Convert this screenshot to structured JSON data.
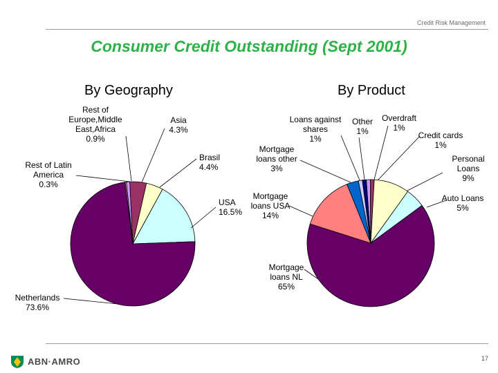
{
  "header": {
    "section_label": "Credit Risk Management"
  },
  "title": "Consumer Credit Outstanding (Sept 2001)",
  "footer": {
    "logo_text": "ABN·AMRO",
    "page_number": "17"
  },
  "colors": {
    "title": "#2fb14a",
    "logo_green": "#0a8a55",
    "logo_yellow": "#f2c40f"
  },
  "chart_data": [
    {
      "type": "pie",
      "title": "By Geography",
      "slices": [
        {
          "label_lines": [
            "Rest of",
            "Europe,Middle",
            "East,Africa",
            "0.9%"
          ],
          "value": 0.9,
          "color": "#cc99ff"
        },
        {
          "label_lines": [
            "Asia",
            "4.3%"
          ],
          "value": 4.3,
          "color": "#993366"
        },
        {
          "label_lines": [
            "Brasil",
            "4.4%"
          ],
          "value": 4.4,
          "color": "#ffffcc"
        },
        {
          "label_lines": [
            "USA",
            "16.5%"
          ],
          "value": 16.5,
          "color": "#ccffff"
        },
        {
          "label_lines": [
            "Netherlands",
            "73.6%"
          ],
          "value": 73.6,
          "color": "#660066"
        },
        {
          "label_lines": [
            "Rest of Latin",
            "America",
            "0.3%"
          ],
          "value": 0.3,
          "color": "#ff99cc"
        }
      ]
    },
    {
      "type": "pie",
      "title": "By Product",
      "slices": [
        {
          "label_lines": [
            "Overdraft",
            "1%"
          ],
          "value": 1,
          "color": "#cc99ff"
        },
        {
          "label_lines": [
            "Credit cards",
            "1%"
          ],
          "value": 1,
          "color": "#993366"
        },
        {
          "label_lines": [
            "Personal",
            "Loans",
            "9%"
          ],
          "value": 9,
          "color": "#ffffcc"
        },
        {
          "label_lines": [
            "Auto Loans",
            "5%"
          ],
          "value": 5,
          "color": "#ccffff"
        },
        {
          "label_lines": [
            "Mortgage",
            "loans NL",
            "65%"
          ],
          "value": 65,
          "color": "#660066"
        },
        {
          "label_lines": [
            "Mortgage",
            "loans USA",
            "14%"
          ],
          "value": 14,
          "color": "#ff8080"
        },
        {
          "label_lines": [
            "Mortgage",
            "loans other",
            "3%"
          ],
          "value": 3,
          "color": "#0066cc"
        },
        {
          "label_lines": [
            "Loans against",
            "shares",
            "1%"
          ],
          "value": 1,
          "color": "#ccccff"
        },
        {
          "label_lines": [
            "Other",
            "1%"
          ],
          "value": 1,
          "color": "#000080"
        }
      ]
    }
  ]
}
